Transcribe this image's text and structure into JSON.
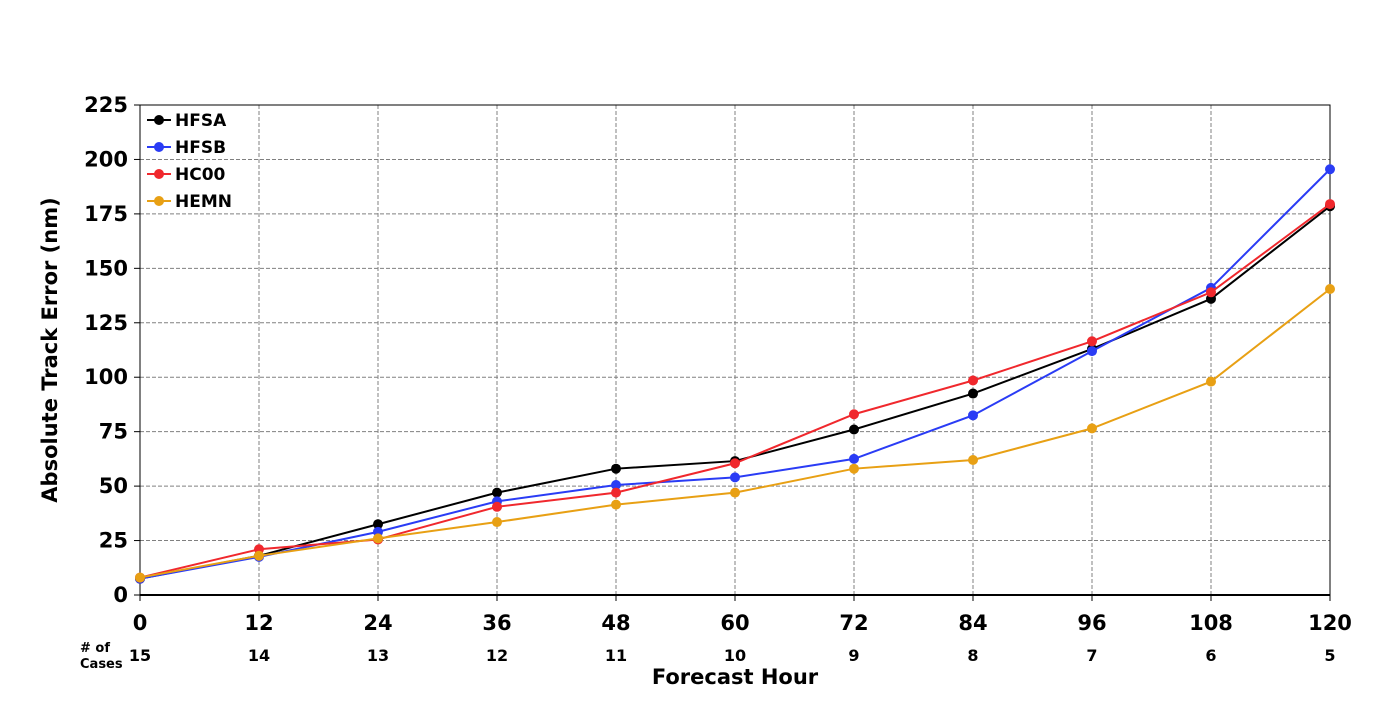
{
  "chart_data": {
    "type": "line",
    "title": "",
    "xlabel": "Forecast Hour",
    "ylabel": "Absolute Track Error (nm)",
    "x": [
      0,
      12,
      24,
      36,
      48,
      60,
      72,
      84,
      96,
      108,
      120
    ],
    "xlim": [
      0,
      120
    ],
    "ylim": [
      0,
      225
    ],
    "yticks": [
      0,
      25,
      50,
      75,
      100,
      125,
      150,
      175,
      200,
      225
    ],
    "grid": true,
    "legend_position": "top-left",
    "cases_label": "# of Cases",
    "cases": [
      15,
      14,
      13,
      12,
      11,
      10,
      9,
      8,
      7,
      6,
      5
    ],
    "series": [
      {
        "name": "HFSA",
        "color": "#000000",
        "values": [
          7.5,
          18,
          32.5,
          47,
          58,
          61.5,
          76,
          92.5,
          113,
          136,
          178.5
        ]
      },
      {
        "name": "HFSB",
        "color": "#2a3cf5",
        "values": [
          7.5,
          17.5,
          29,
          43,
          50.5,
          54,
          62.5,
          82.5,
          112,
          141,
          195.5
        ]
      },
      {
        "name": "HC00",
        "color": "#f0282d",
        "values": [
          8,
          21,
          25.5,
          40.5,
          47,
          60.5,
          83,
          98.5,
          116.5,
          139,
          179.5
        ]
      },
      {
        "name": "HEMN",
        "color": "#e8a014",
        "values": [
          8,
          18,
          26,
          33.5,
          41.5,
          47,
          58,
          62,
          76.5,
          98,
          140.5
        ]
      }
    ]
  }
}
